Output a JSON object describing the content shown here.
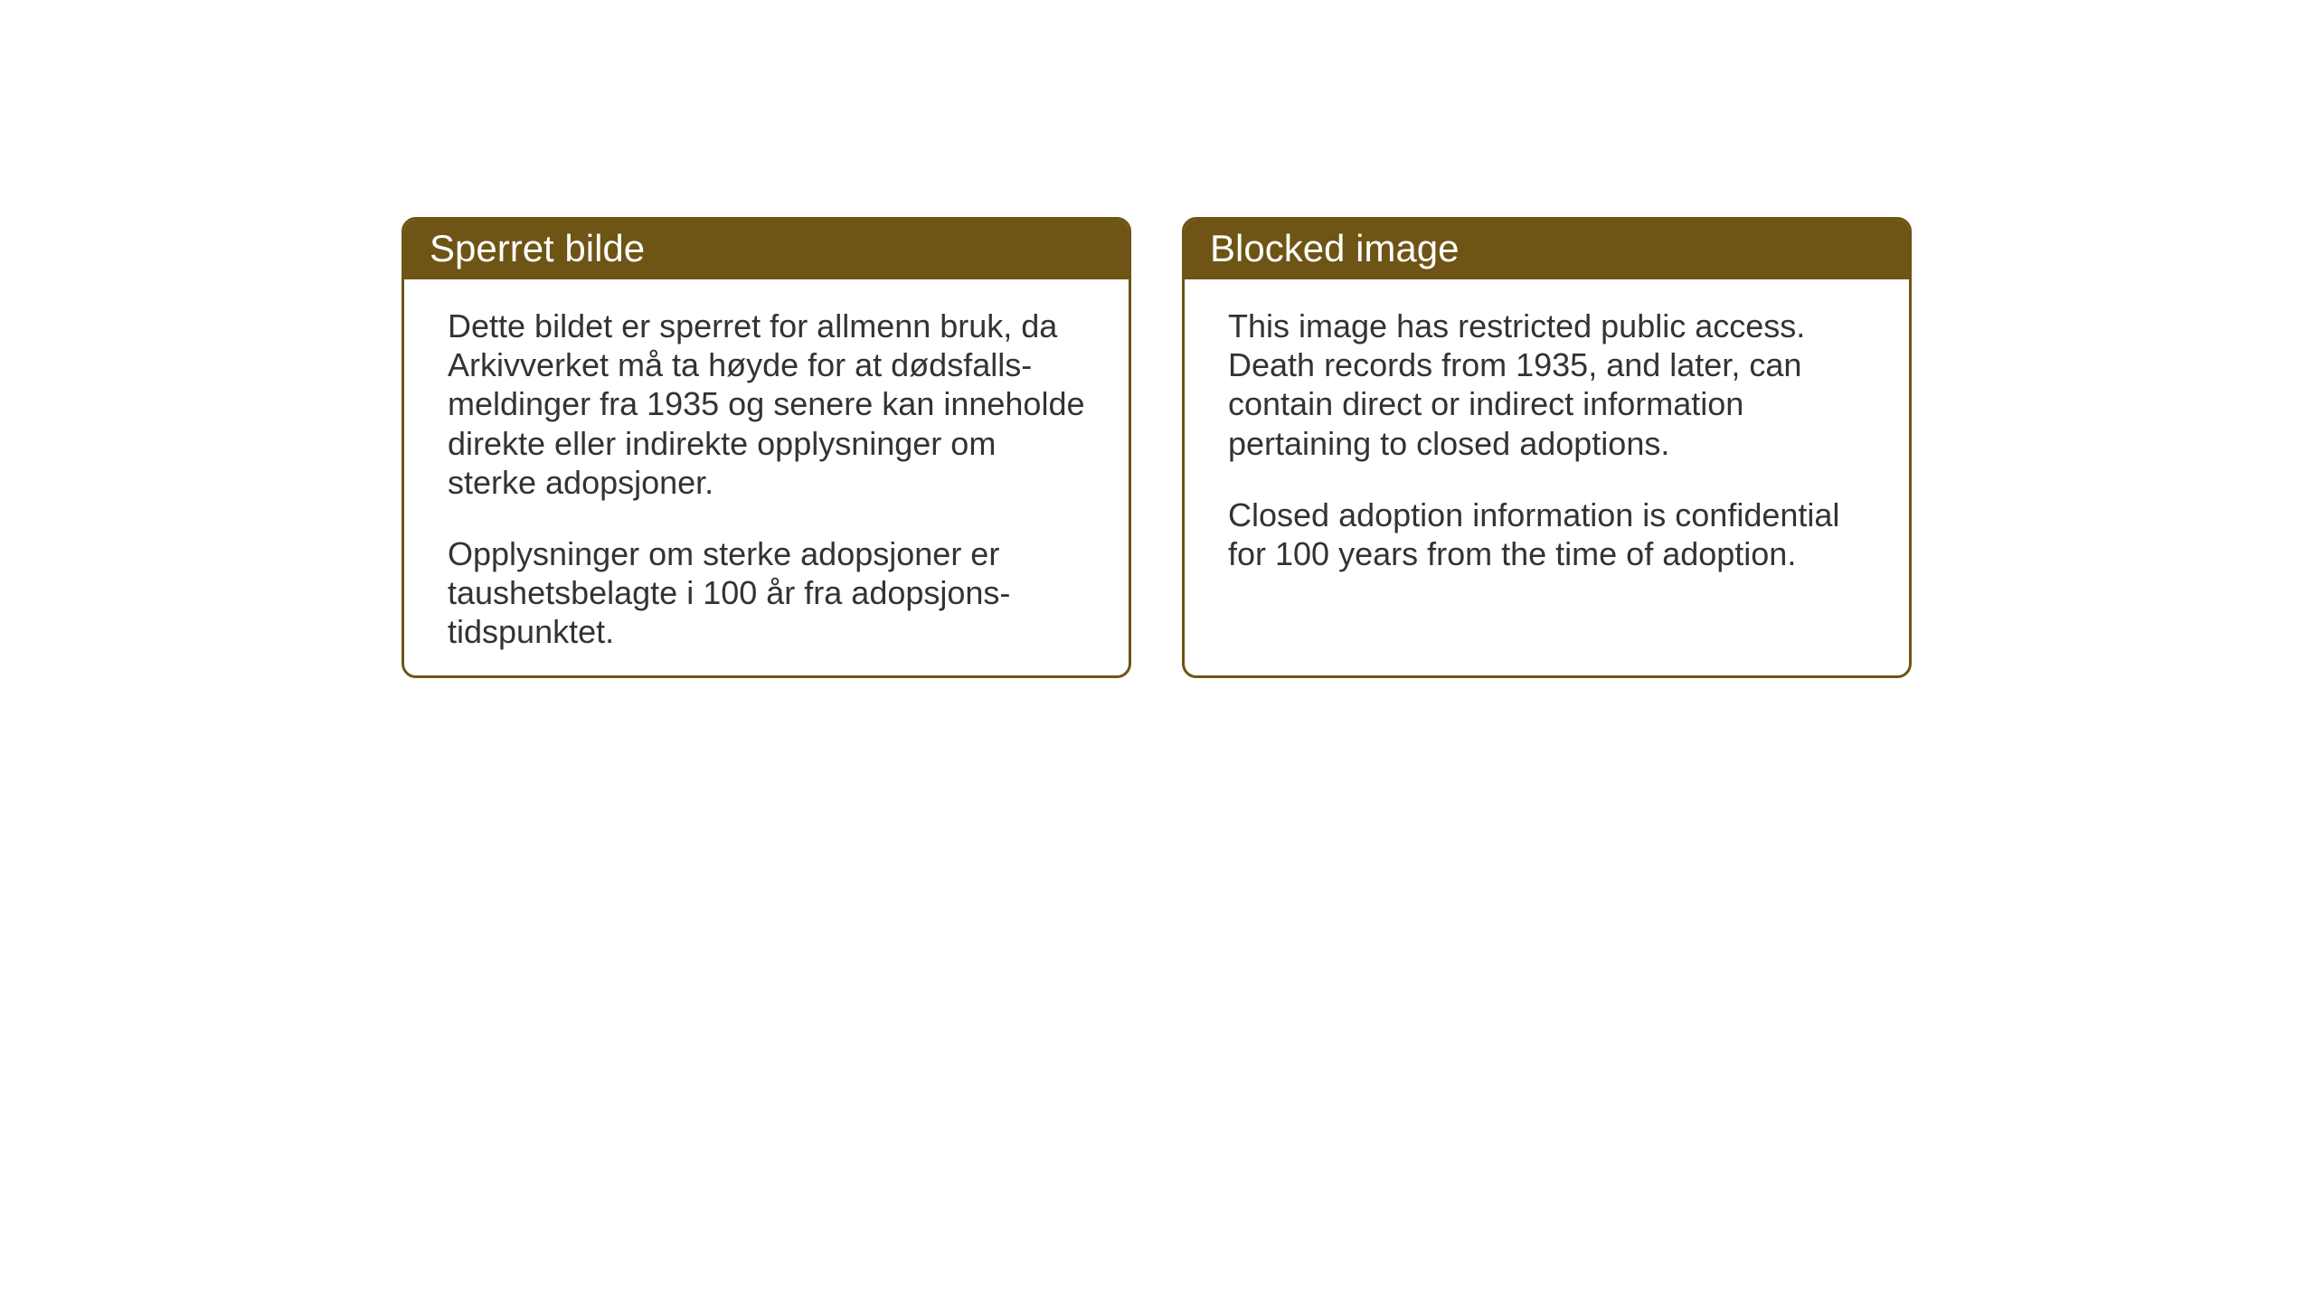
{
  "notices": {
    "norwegian": {
      "title": "Sperret bilde",
      "paragraph1": "Dette bildet er sperret for allmenn bruk, da Arkivverket må ta høyde for at dødsfalls-meldinger fra 1935 og senere kan inneholde direkte eller indirekte opplysninger om sterke adopsjoner.",
      "paragraph2": "Opplysninger om sterke adopsjoner er taushetsbelagte i 100 år fra adopsjons-tidspunktet."
    },
    "english": {
      "title": "Blocked image",
      "paragraph1": "This image has restricted public access. Death records from 1935, and later, can contain direct or indirect information pertaining to closed adoptions.",
      "paragraph2": "Closed adoption information is confidential for 100 years from the time of adoption."
    }
  },
  "styling": {
    "header_background": "#6e5415",
    "header_text_color": "#ffffff",
    "border_color": "#6e5415",
    "body_text_color": "#333333",
    "background_color": "#ffffff",
    "title_fontsize": 42,
    "body_fontsize": 36,
    "border_radius": 16,
    "border_width": 3
  }
}
